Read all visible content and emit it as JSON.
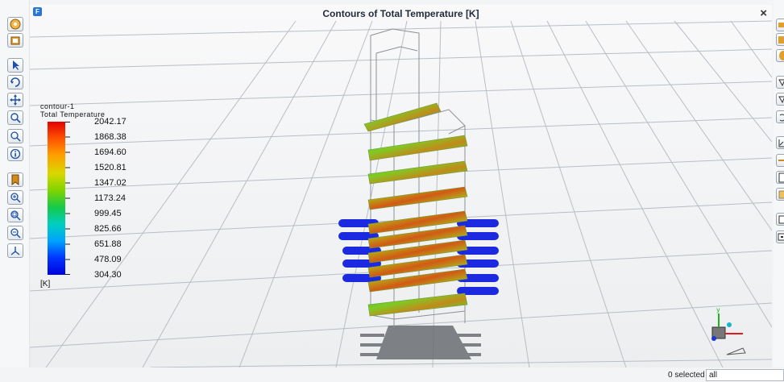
{
  "window": {
    "title": "Contours of Total Temperature [K]",
    "close_glyph": "×",
    "app_icon_letter": "F"
  },
  "legend": {
    "name": "contour-1",
    "field": "Total Temperature",
    "unit": "[K]",
    "levels": [
      "2042.17",
      "1868.38",
      "1694.60",
      "1520.81",
      "1347.02",
      "1173.24",
      "999.45",
      "825.66",
      "651.88",
      "478.09",
      "304.30"
    ]
  },
  "left_toolbar": [
    "orbit-view-icon",
    "fit-window-icon",
    "select-pointer-icon",
    "rotate-icon",
    "pan-icon",
    "zoom-icon",
    "zoom-box-icon",
    "probe-info-icon",
    "bookmark-icon",
    "zoom-in-icon",
    "zoom-fit-icon",
    "zoom-out-icon",
    "axes-icon"
  ],
  "right_toolbar": [
    "surface-icon",
    "box-icon",
    "cylinder-icon",
    "view-a-icon",
    "view-b-icon",
    "undo-view-icon",
    "chart-icon",
    "line-icon",
    "document-icon",
    "copy-icon",
    "window-icon",
    "screen-icon"
  ],
  "status": {
    "selected": "0 selected",
    "filter": "all"
  }
}
